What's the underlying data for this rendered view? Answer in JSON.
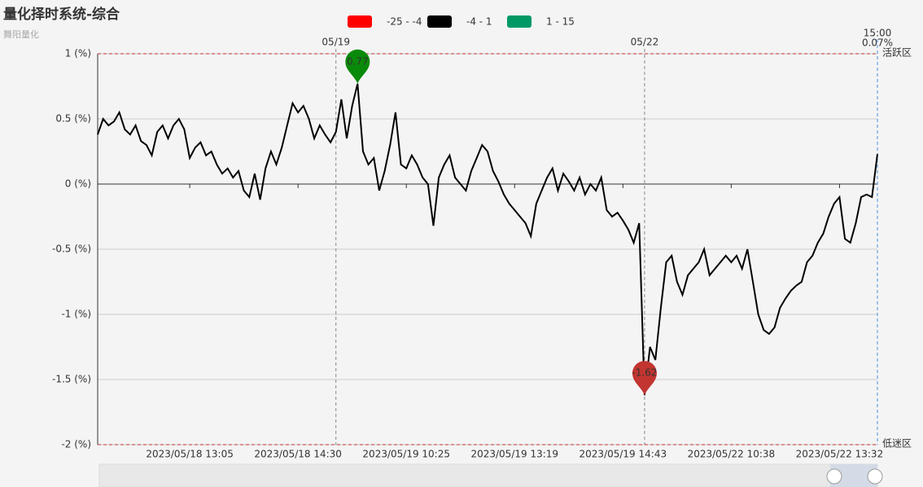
{
  "chart_data": {
    "type": "line",
    "title": "量化择时系统-综合",
    "subtitle": "舞阳量化",
    "legend": [
      {
        "label": "-25 - -4",
        "color": "#ff0000"
      },
      {
        "label": "-4 - 1",
        "color": "#000000"
      },
      {
        "label": "1 - 15",
        "color": "#009966"
      }
    ],
    "categories": [
      null,
      null,
      null,
      null,
      null,
      null,
      null,
      null,
      null,
      null,
      null,
      null,
      null,
      null,
      null,
      null,
      null,
      "2023/05/18 13:05",
      null,
      null,
      null,
      null,
      null,
      null,
      null,
      null,
      null,
      null,
      null,
      null,
      null,
      null,
      null,
      null,
      null,
      null,
      null,
      "2023/05/18 14:30",
      null,
      null,
      null,
      null,
      null,
      null,
      null,
      null,
      null,
      null,
      null,
      null,
      null,
      null,
      null,
      null,
      null,
      null,
      null,
      "2023/05/19 10:25",
      null,
      null,
      null,
      null,
      null,
      null,
      null,
      null,
      null,
      null,
      null,
      null,
      null,
      null,
      null,
      null,
      null,
      null,
      null,
      "2023/05/19 13:19",
      null,
      null,
      null,
      null,
      null,
      null,
      null,
      null,
      null,
      null,
      null,
      null,
      null,
      null,
      null,
      null,
      null,
      null,
      null,
      "2023/05/19 14:43",
      null,
      null,
      null,
      null,
      null,
      null,
      null,
      null,
      null,
      null,
      null,
      null,
      null,
      null,
      null,
      null,
      null,
      null,
      null,
      "2023/05/22 10:38",
      null,
      null,
      null,
      null,
      null,
      null,
      null,
      null,
      null,
      null,
      null,
      null,
      null,
      null,
      null,
      null,
      null,
      null,
      null,
      "2023/05/22 13:32",
      null,
      null,
      null,
      null,
      null,
      null,
      null
    ],
    "series": [
      {
        "color": "#000000",
        "values": [
          0.38,
          0.5,
          0.45,
          0.48,
          0.55,
          0.42,
          0.38,
          0.45,
          0.33,
          0.3,
          0.22,
          0.4,
          0.45,
          0.35,
          0.45,
          0.5,
          0.42,
          0.2,
          0.28,
          0.32,
          0.22,
          0.25,
          0.15,
          0.08,
          0.12,
          0.05,
          0.1,
          -0.05,
          -0.1,
          0.08,
          -0.12,
          0.12,
          0.25,
          0.15,
          0.28,
          0.45,
          0.62,
          0.55,
          0.6,
          0.5,
          0.35,
          0.45,
          0.38,
          0.32,
          0.4,
          0.65,
          0.35,
          0.6,
          0.77,
          0.25,
          0.15,
          0.2,
          -0.05,
          0.1,
          0.3,
          0.55,
          0.15,
          0.12,
          0.22,
          0.15,
          0.05,
          0.0,
          -0.32,
          0.05,
          0.15,
          0.22,
          0.05,
          0.0,
          -0.05,
          0.1,
          0.2,
          0.3,
          0.25,
          0.1,
          0.02,
          -0.08,
          -0.15,
          -0.2,
          -0.25,
          -0.3,
          -0.4,
          -0.15,
          -0.05,
          0.05,
          0.12,
          -0.05,
          0.08,
          0.02,
          -0.05,
          0.05,
          -0.08,
          0.0,
          -0.05,
          0.05,
          -0.2,
          -0.25,
          -0.22,
          -0.28,
          -0.35,
          -0.45,
          -0.3,
          -1.62,
          -1.25,
          -1.35,
          -0.95,
          -0.6,
          -0.55,
          -0.75,
          -0.85,
          -0.7,
          -0.65,
          -0.6,
          -0.5,
          -0.7,
          -0.65,
          -0.6,
          -0.55,
          -0.6,
          -0.55,
          -0.65,
          -0.5,
          -0.75,
          -1.0,
          -1.12,
          -1.15,
          -1.1,
          -0.95,
          -0.88,
          -0.82,
          -0.78,
          -0.75,
          -0.6,
          -0.55,
          -0.45,
          -0.38,
          -0.25,
          -0.15,
          -0.1,
          -0.42,
          -0.45,
          -0.3,
          -0.1,
          -0.08,
          -0.1,
          0.23
        ]
      }
    ],
    "ylim": [
      -2,
      1
    ],
    "yticks": [
      {
        "value": -2,
        "label": "-2 (%)"
      },
      {
        "value": -1.5,
        "label": "-1.5 (%)"
      },
      {
        "value": -1,
        "label": "-1 (%)"
      },
      {
        "value": -0.5,
        "label": "-0.5 (%)"
      },
      {
        "value": 0,
        "label": "0 (%)"
      },
      {
        "value": 0.5,
        "label": "0.5 (%)"
      },
      {
        "value": 1,
        "label": "1 (%)"
      }
    ],
    "grid": true,
    "day_markers": [
      {
        "at": 44,
        "label": "05/19"
      },
      {
        "at": 101,
        "label": "05/22"
      }
    ],
    "mark_lines": [
      {
        "value": 1,
        "label": "活跃区"
      },
      {
        "value": -2,
        "label": "低迷区"
      }
    ],
    "cursor": {
      "time": "15:00",
      "value": "0.07%"
    },
    "max_color": "#0a8a0a",
    "min_color": "#c23531"
  }
}
